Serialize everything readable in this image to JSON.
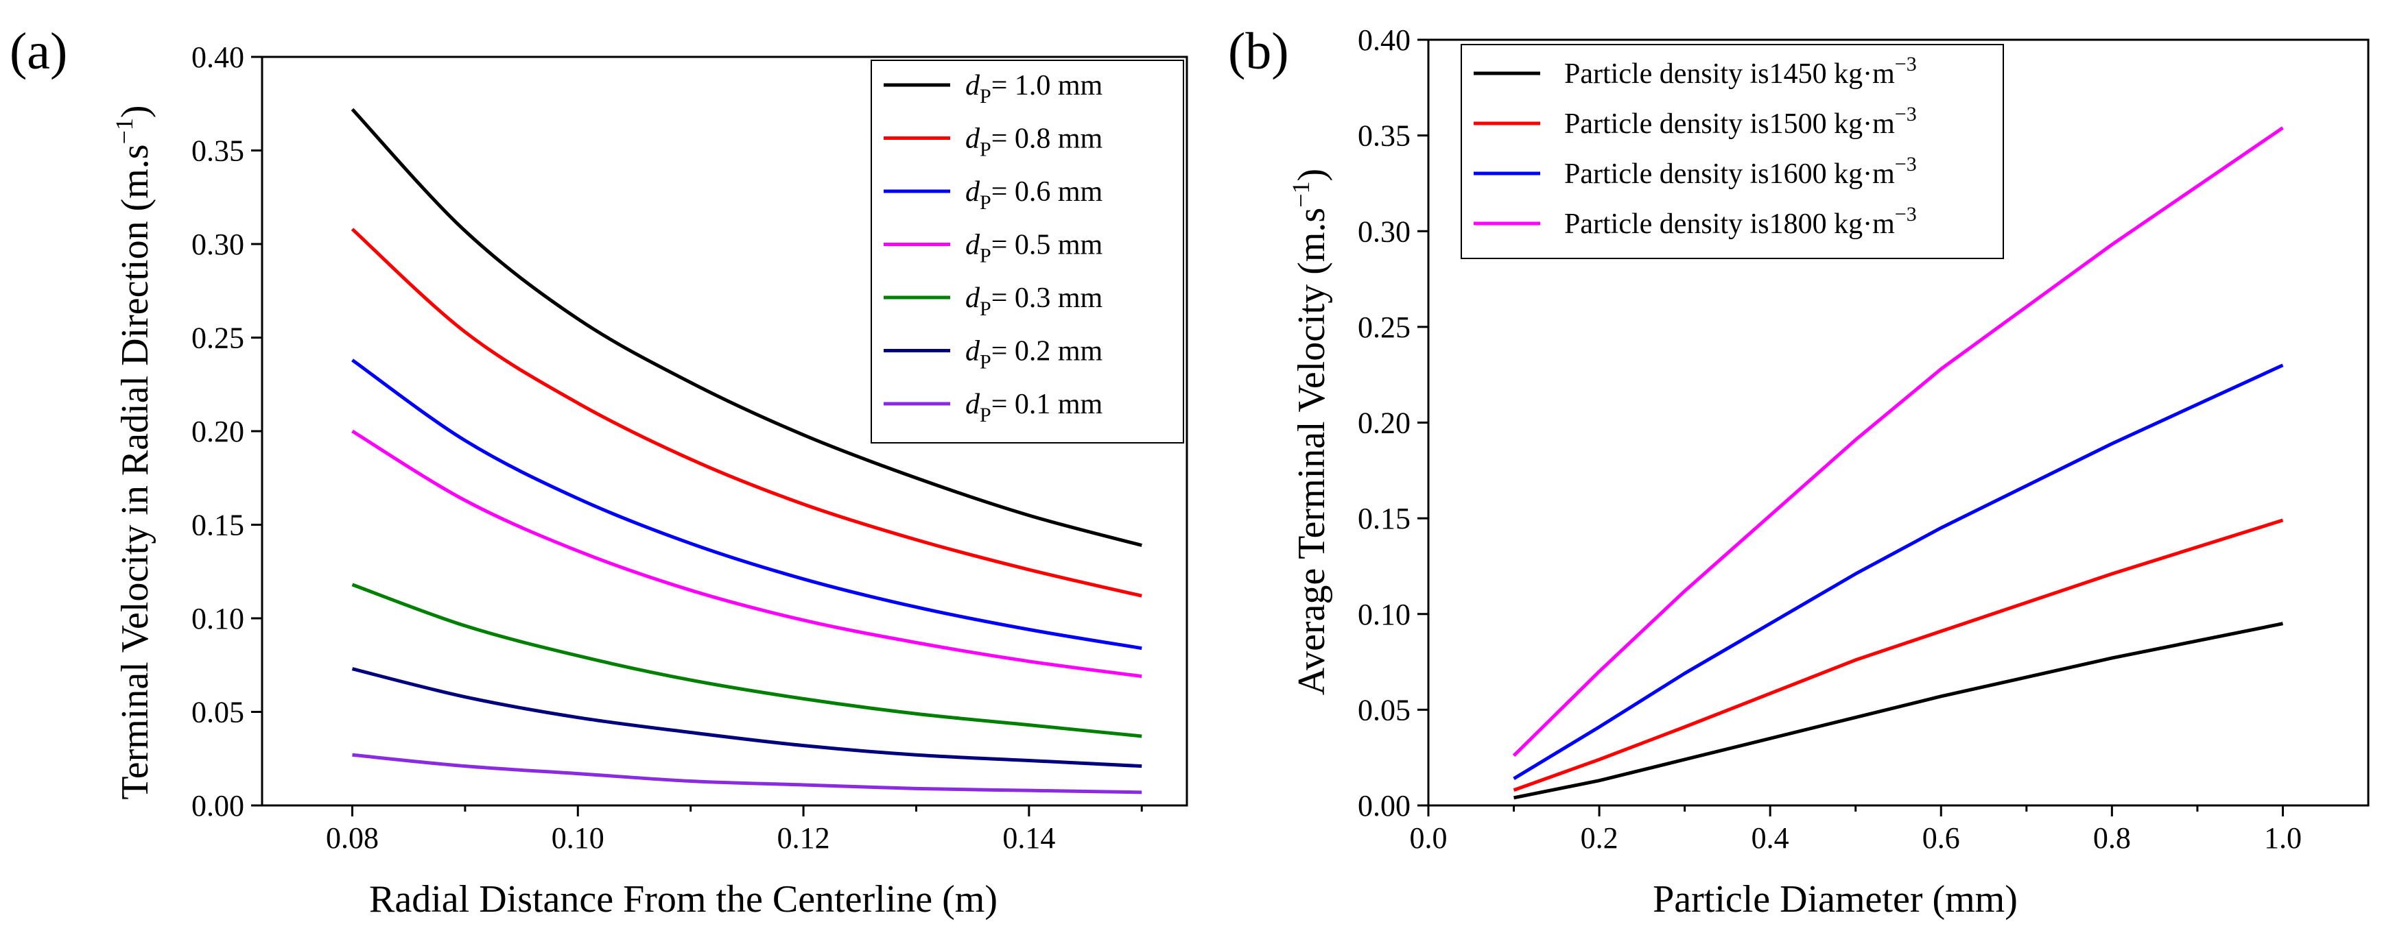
{
  "figure": {
    "panel_a_label": "(a)",
    "panel_b_label": "(b)"
  },
  "chart_data": [
    {
      "id": "a",
      "type": "line",
      "title": "",
      "xlabel": "Radial Distance From the Centerline (m)",
      "ylabel_main": "Terminal Velocity in Radial Direction (m.s",
      "ylabel_sup": "−1",
      "ylabel_end": ")",
      "xlim": [
        0.072,
        0.154
      ],
      "ylim": [
        0,
        0.4
      ],
      "xticks": [
        0.08,
        0.1,
        0.12,
        0.14
      ],
      "xtick_labels": [
        "0.08",
        "0.10",
        "0.12",
        "0.14"
      ],
      "yticks": [
        0,
        0.05,
        0.1,
        0.15,
        0.2,
        0.25,
        0.3,
        0.35,
        0.4
      ],
      "ytick_labels": [
        "0.00",
        "0.05",
        "0.10",
        "0.15",
        "0.20",
        "0.25",
        "0.30",
        "0.35",
        "0.40"
      ],
      "grid": false,
      "legend_position": "top-right",
      "series": [
        {
          "legend_var": "d",
          "legend_sub": "P",
          "legend_rest": "= 1.0 mm",
          "color": "#000000",
          "x": [
            0.08,
            0.09,
            0.1,
            0.11,
            0.12,
            0.13,
            0.14,
            0.15
          ],
          "values": [
            0.372,
            0.307,
            0.26,
            0.226,
            0.198,
            0.175,
            0.155,
            0.139
          ]
        },
        {
          "legend_var": "d",
          "legend_sub": "P",
          "legend_rest": "= 0.8 mm",
          "color": "#ff0000",
          "x": [
            0.08,
            0.09,
            0.1,
            0.11,
            0.12,
            0.13,
            0.14,
            0.15
          ],
          "values": [
            0.308,
            0.253,
            0.215,
            0.185,
            0.161,
            0.142,
            0.126,
            0.112
          ]
        },
        {
          "legend_var": "d",
          "legend_sub": "P",
          "legend_rest": "= 0.6 mm",
          "color": "#0000ff",
          "x": [
            0.08,
            0.09,
            0.1,
            0.11,
            0.12,
            0.13,
            0.14,
            0.15
          ],
          "values": [
            0.238,
            0.195,
            0.164,
            0.14,
            0.121,
            0.106,
            0.094,
            0.084
          ]
        },
        {
          "legend_var": "d",
          "legend_sub": "P",
          "legend_rest": "= 0.5 mm",
          "color": "#ff00ff",
          "x": [
            0.08,
            0.09,
            0.1,
            0.11,
            0.12,
            0.13,
            0.14,
            0.15
          ],
          "values": [
            0.2,
            0.163,
            0.136,
            0.115,
            0.099,
            0.087,
            0.077,
            0.069
          ]
        },
        {
          "legend_var": "d",
          "legend_sub": "P",
          "legend_rest": "= 0.3 mm",
          "color": "#008000",
          "x": [
            0.08,
            0.09,
            0.1,
            0.11,
            0.12,
            0.13,
            0.14,
            0.15
          ],
          "values": [
            0.118,
            0.096,
            0.08,
            0.067,
            0.057,
            0.049,
            0.043,
            0.037
          ]
        },
        {
          "legend_var": "d",
          "legend_sub": "P",
          "legend_rest": "= 0.2 mm",
          "color": "#00007f",
          "x": [
            0.08,
            0.09,
            0.1,
            0.11,
            0.12,
            0.13,
            0.14,
            0.15
          ],
          "values": [
            0.073,
            0.058,
            0.047,
            0.039,
            0.032,
            0.027,
            0.024,
            0.021
          ]
        },
        {
          "legend_var": "d",
          "legend_sub": "P",
          "legend_rest": "= 0.1 mm",
          "color": "#8a2be2",
          "x": [
            0.08,
            0.09,
            0.1,
            0.11,
            0.12,
            0.13,
            0.14,
            0.15
          ],
          "values": [
            0.027,
            0.021,
            0.017,
            0.013,
            0.011,
            0.009,
            0.008,
            0.007
          ]
        }
      ]
    },
    {
      "id": "b",
      "type": "line",
      "title": "",
      "xlabel": "Particle Diameter (mm)",
      "ylabel_main": "Average Terminal Velocity (m.s",
      "ylabel_sup": "−1",
      "ylabel_end": ")",
      "xlim": [
        0.0,
        1.1
      ],
      "ylim": [
        0,
        0.4
      ],
      "xticks": [
        0.0,
        0.2,
        0.4,
        0.6,
        0.8,
        1.0
      ],
      "xtick_labels": [
        "0.0",
        "0.2",
        "0.4",
        "0.6",
        "0.8",
        "1.0"
      ],
      "yticks": [
        0,
        0.05,
        0.1,
        0.15,
        0.2,
        0.25,
        0.3,
        0.35,
        0.4
      ],
      "ytick_labels": [
        "0.00",
        "0.05",
        "0.10",
        "0.15",
        "0.20",
        "0.25",
        "0.30",
        "0.35",
        "0.40"
      ],
      "grid": false,
      "legend_position": "top-left",
      "series": [
        {
          "legend_main": "Particle density is1450 kg·m",
          "legend_sup": "−3",
          "color": "#000000",
          "x": [
            0.1,
            0.2,
            0.3,
            0.5,
            0.6,
            0.8,
            1.0
          ],
          "values": [
            0.004,
            0.013,
            0.024,
            0.046,
            0.057,
            0.077,
            0.095
          ]
        },
        {
          "legend_main": "Particle density is1500 kg·m",
          "legend_sup": "−3",
          "color": "#ff0000",
          "x": [
            0.1,
            0.2,
            0.3,
            0.5,
            0.6,
            0.8,
            1.0
          ],
          "values": [
            0.008,
            0.024,
            0.041,
            0.076,
            0.091,
            0.121,
            0.149
          ]
        },
        {
          "legend_main": "Particle density is1600 kg·m",
          "legend_sup": "−3",
          "color": "#0000ff",
          "x": [
            0.1,
            0.2,
            0.3,
            0.5,
            0.6,
            0.8,
            1.0
          ],
          "values": [
            0.014,
            0.041,
            0.069,
            0.121,
            0.145,
            0.189,
            0.23
          ]
        },
        {
          "legend_main": "Particle density is1800 kg·m",
          "legend_sup": "−3",
          "color": "#ff00ff",
          "x": [
            0.1,
            0.2,
            0.3,
            0.5,
            0.6,
            0.8,
            1.0
          ],
          "values": [
            0.026,
            0.07,
            0.112,
            0.191,
            0.228,
            0.293,
            0.354
          ]
        }
      ]
    }
  ]
}
